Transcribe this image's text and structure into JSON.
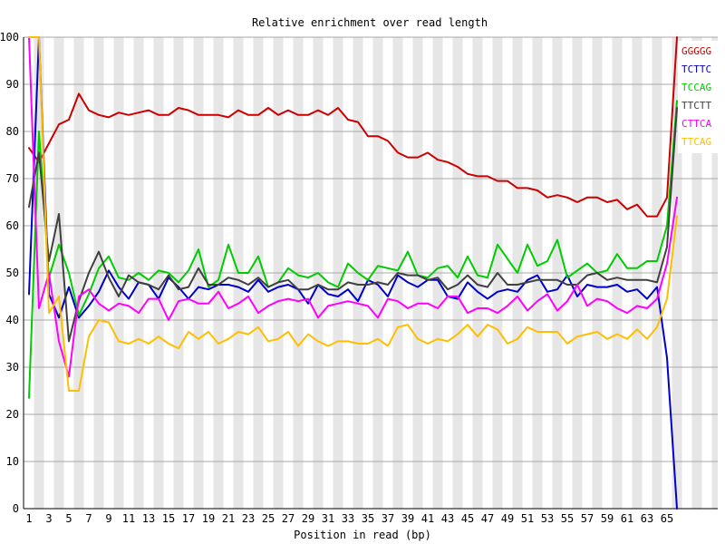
{
  "chart_data": {
    "type": "line",
    "title": "Relative enrichment over read length",
    "xlabel": "Position in read (bp)",
    "ylabel": "",
    "ylim": [
      0,
      100
    ],
    "yticks": [
      0,
      10,
      20,
      30,
      40,
      50,
      60,
      70,
      80,
      90,
      100
    ],
    "xlim": [
      1,
      66
    ],
    "xticks": [
      1,
      3,
      5,
      7,
      9,
      11,
      13,
      15,
      17,
      19,
      21,
      23,
      25,
      27,
      29,
      31,
      33,
      35,
      37,
      39,
      41,
      43,
      45,
      47,
      49,
      51,
      53,
      55,
      57,
      59,
      61,
      63,
      65
    ],
    "grid": true,
    "legend_position": "right",
    "x": [
      1,
      2,
      3,
      4,
      5,
      6,
      7,
      8,
      9,
      10,
      11,
      12,
      13,
      14,
      15,
      16,
      17,
      18,
      19,
      20,
      21,
      22,
      23,
      24,
      25,
      26,
      27,
      28,
      29,
      30,
      31,
      32,
      33,
      34,
      35,
      36,
      37,
      38,
      39,
      40,
      41,
      42,
      43,
      44,
      45,
      46,
      47,
      48,
      49,
      50,
      51,
      52,
      53,
      54,
      55,
      56,
      57,
      58,
      59,
      60,
      61,
      62,
      63,
      64,
      65,
      66
    ],
    "series": [
      {
        "name": "GGGGG",
        "color": "#cc0000",
        "values": [
          76.5,
          73.5,
          77.5,
          81.5,
          82.5,
          88.0,
          84.5,
          83.5,
          83.0,
          84.0,
          83.5,
          84.0,
          84.5,
          83.5,
          83.5,
          85.0,
          84.5,
          83.5,
          83.5,
          83.5,
          83.0,
          84.5,
          83.5,
          83.5,
          85.0,
          83.5,
          84.5,
          83.5,
          83.5,
          84.5,
          83.5,
          85.0,
          82.5,
          82.0,
          79.0,
          79.0,
          78.0,
          75.5,
          74.5,
          74.5,
          75.5,
          74.0,
          73.5,
          72.5,
          71.0,
          70.5,
          70.5,
          69.5,
          69.5,
          68.0,
          68.0,
          67.5,
          66.0,
          66.5,
          66.0,
          65.0,
          66.0,
          66.0,
          65.0,
          65.5,
          63.5,
          64.5,
          62.0,
          62.0,
          66.0,
          100.0
        ]
      },
      {
        "name": "TCTTC",
        "color": "#0000cc",
        "values": [
          45.5,
          100.0,
          45.5,
          40.5,
          47.0,
          40.5,
          43.0,
          46.0,
          50.5,
          47.0,
          44.5,
          48.0,
          47.5,
          44.5,
          49.0,
          47.0,
          44.5,
          47.0,
          46.5,
          47.5,
          47.5,
          47.0,
          46.0,
          48.5,
          46.0,
          47.0,
          47.5,
          46.5,
          43.5,
          47.5,
          45.5,
          45.0,
          46.5,
          44.0,
          48.5,
          47.5,
          45.0,
          49.5,
          48.0,
          47.0,
          48.5,
          48.5,
          45.0,
          44.5,
          48.0,
          46.0,
          44.5,
          46.0,
          46.5,
          46.0,
          48.5,
          49.5,
          46.0,
          46.5,
          49.5,
          45.0,
          47.5,
          47.0,
          47.0,
          47.5,
          46.0,
          46.5,
          44.5,
          47.0,
          32.0,
          0.0
        ]
      },
      {
        "name": "TCCAG",
        "color": "#00cc00",
        "values": [
          23.5,
          80.0,
          49.0,
          56.0,
          50.0,
          41.0,
          45.5,
          51.0,
          53.5,
          49.0,
          48.5,
          50.0,
          48.5,
          50.5,
          50.0,
          48.0,
          50.5,
          55.0,
          47.0,
          48.5,
          56.0,
          50.0,
          50.0,
          53.5,
          47.0,
          48.0,
          51.0,
          49.5,
          49.0,
          50.0,
          48.0,
          47.0,
          52.0,
          50.0,
          48.5,
          51.5,
          51.0,
          50.5,
          54.5,
          49.5,
          49.0,
          51.0,
          51.5,
          49.0,
          53.5,
          49.5,
          49.0,
          56.0,
          53.0,
          50.0,
          56.0,
          51.5,
          52.5,
          57.0,
          49.0,
          50.5,
          52.0,
          50.0,
          50.5,
          54.0,
          51.0,
          51.0,
          52.5,
          52.5,
          60.0,
          86.5
        ]
      },
      {
        "name": "TTCTT",
        "color": "#404040",
        "values": [
          64.0,
          75.5,
          52.5,
          62.5,
          35.5,
          44.0,
          50.0,
          54.5,
          49.0,
          45.0,
          49.5,
          48.0,
          47.5,
          46.5,
          49.5,
          46.5,
          47.0,
          51.0,
          47.5,
          47.5,
          49.0,
          48.5,
          47.5,
          49.0,
          47.0,
          48.0,
          48.5,
          46.5,
          46.5,
          47.5,
          46.5,
          46.5,
          48.0,
          47.5,
          47.5,
          48.0,
          47.5,
          50.0,
          49.5,
          49.5,
          48.5,
          49.0,
          46.5,
          47.5,
          49.5,
          47.5,
          47.0,
          50.0,
          47.5,
          47.5,
          48.0,
          48.5,
          48.5,
          48.5,
          47.5,
          47.5,
          49.5,
          50.0,
          48.5,
          49.0,
          48.5,
          48.5,
          48.5,
          48.0,
          55.5,
          85.0
        ]
      },
      {
        "name": "CTTCA",
        "color": "#ff00ff",
        "values": [
          100.0,
          42.5,
          50.0,
          35.5,
          28.0,
          45.0,
          46.5,
          43.5,
          42.0,
          43.5,
          43.0,
          41.5,
          44.5,
          44.5,
          40.0,
          44.0,
          44.5,
          43.5,
          43.5,
          46.0,
          42.5,
          43.5,
          45.0,
          41.5,
          43.0,
          44.0,
          44.5,
          44.0,
          44.5,
          40.5,
          43.0,
          43.5,
          44.0,
          43.5,
          43.0,
          40.5,
          44.5,
          44.0,
          42.5,
          43.5,
          43.5,
          42.5,
          45.0,
          45.0,
          41.5,
          42.5,
          42.5,
          41.5,
          43.0,
          45.0,
          42.0,
          44.0,
          45.5,
          42.0,
          44.0,
          47.5,
          43.0,
          44.5,
          44.0,
          42.5,
          41.5,
          43.0,
          42.5,
          44.5,
          52.0,
          66.0
        ]
      },
      {
        "name": "TTCAG",
        "color": "#ffbf00",
        "values": [
          100.0,
          100.0,
          41.5,
          45.0,
          25.0,
          25.0,
          36.5,
          40.0,
          39.5,
          35.5,
          35.0,
          36.0,
          35.0,
          36.5,
          35.0,
          34.0,
          37.5,
          36.0,
          37.5,
          35.0,
          36.0,
          37.5,
          37.0,
          38.5,
          35.5,
          36.0,
          37.5,
          34.5,
          37.0,
          35.5,
          34.5,
          35.5,
          35.5,
          35.0,
          35.0,
          36.0,
          34.5,
          38.5,
          39.0,
          36.0,
          35.0,
          36.0,
          35.5,
          37.0,
          39.0,
          36.5,
          39.0,
          38.0,
          35.0,
          36.0,
          38.5,
          37.5,
          37.5,
          37.5,
          35.0,
          36.5,
          37.0,
          37.5,
          36.0,
          37.0,
          36.0,
          38.0,
          36.0,
          38.5,
          44.5,
          62.0
        ]
      }
    ]
  }
}
